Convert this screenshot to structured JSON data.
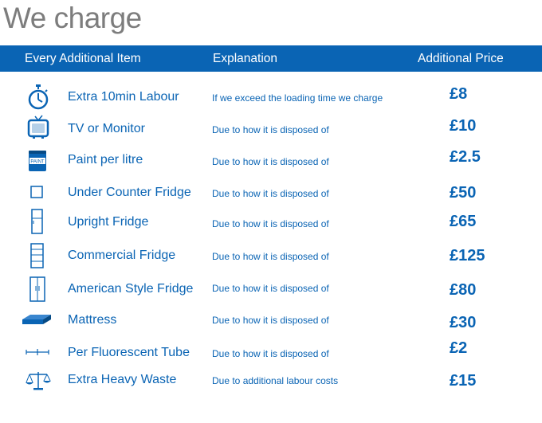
{
  "page": {
    "title": "We charge"
  },
  "header": {
    "col_item": "Every Additional Item",
    "col_explanation": "Explanation",
    "col_price": "Additional Price"
  },
  "colors": {
    "brand_blue": "#0a64b4",
    "title_gray": "#7d7d7d"
  },
  "rows": [
    {
      "icon": "stopwatch-icon",
      "item": "Extra 10min Labour",
      "explanation": "If we exceed the loading time we charge",
      "price": "£8"
    },
    {
      "icon": "tv-icon",
      "item": "TV or Monitor",
      "explanation": "Due to how it is disposed of",
      "price": "£10"
    },
    {
      "icon": "paint-can-icon",
      "item": "Paint per litre",
      "explanation": "Due to how it is disposed of",
      "price": "£2.5"
    },
    {
      "icon": "under-counter-fridge-icon",
      "item": "Under Counter Fridge",
      "explanation": "Due to how it is disposed of",
      "price": "£50"
    },
    {
      "icon": "upright-fridge-icon",
      "item": "Upright Fridge",
      "explanation": "Due to how it is disposed of",
      "price": "£65"
    },
    {
      "icon": "commercial-fridge-icon",
      "item": "Commercial Fridge",
      "explanation": "Due to how it is disposed of",
      "price": "£125"
    },
    {
      "icon": "american-fridge-icon",
      "item": "American Style Fridge",
      "explanation": "Due to how it is disposed of",
      "price": "£80"
    },
    {
      "icon": "mattress-icon",
      "item": "Mattress",
      "explanation": "Due to how it is disposed of",
      "price": "£30"
    },
    {
      "icon": "fluorescent-tube-icon",
      "item": "Per Fluorescent Tube",
      "explanation": "Due to how it is disposed of",
      "price": "£2"
    },
    {
      "icon": "scales-icon",
      "item": "Extra Heavy Waste",
      "explanation": "Due to additional labour costs",
      "price": "£15"
    }
  ]
}
